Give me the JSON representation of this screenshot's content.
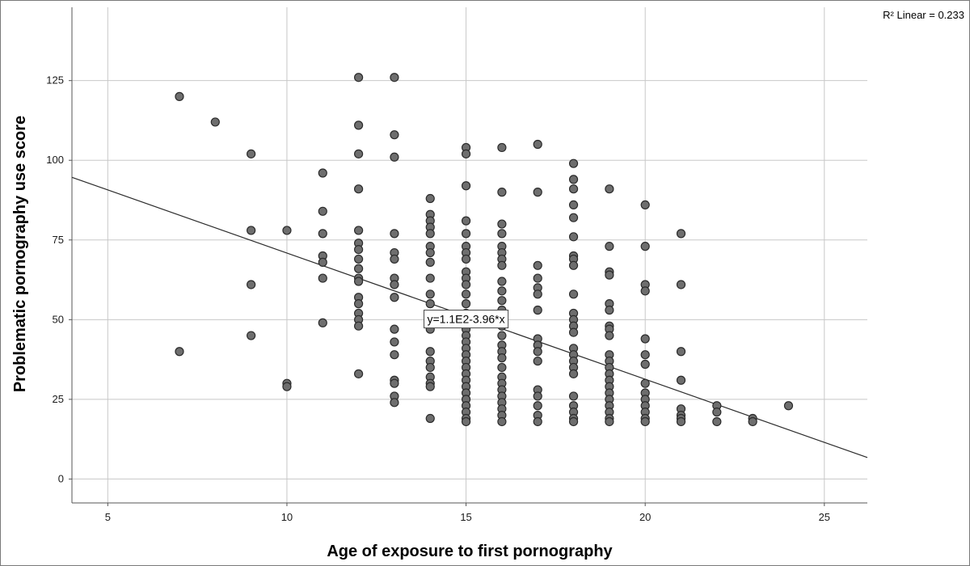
{
  "chart_data": {
    "type": "scatter",
    "title": "",
    "xlabel": "Age of exposure to first pornography",
    "ylabel": "Problematic pornography use score",
    "xlim": [
      4,
      26.2
    ],
    "ylim": [
      -7.5,
      148
    ],
    "x_ticks": [
      5,
      10,
      15,
      20,
      25
    ],
    "y_ticks": [
      0,
      25,
      50,
      75,
      100,
      125
    ],
    "grid": true,
    "marker_color": "#6e6e6e",
    "marker_edge_color": "#2b2b2b",
    "line_color": "#2b2b2b",
    "fit_line": {
      "intercept": 110.5,
      "slope": -3.96,
      "equation_label": "y=1.1E2-3.96*x",
      "equation_at": [
        15,
        50.2
      ],
      "r2_label": "R² Linear = 0.233"
    },
    "points": [
      [
        7,
        120
      ],
      [
        7,
        40
      ],
      [
        8,
        112
      ],
      [
        9,
        102
      ],
      [
        9,
        78
      ],
      [
        9,
        61
      ],
      [
        9,
        45
      ],
      [
        10,
        78
      ],
      [
        10,
        30
      ],
      [
        10,
        29
      ],
      [
        11,
        96
      ],
      [
        11,
        84
      ],
      [
        11,
        77
      ],
      [
        11,
        70
      ],
      [
        11,
        68
      ],
      [
        11,
        63
      ],
      [
        11,
        49
      ],
      [
        12,
        126
      ],
      [
        12,
        111
      ],
      [
        12,
        102
      ],
      [
        12,
        91
      ],
      [
        12,
        78
      ],
      [
        12,
        74
      ],
      [
        12,
        72
      ],
      [
        12,
        69
      ],
      [
        12,
        66
      ],
      [
        12,
        63
      ],
      [
        12,
        62
      ],
      [
        12,
        57
      ],
      [
        12,
        55
      ],
      [
        12,
        52
      ],
      [
        12,
        50
      ],
      [
        12,
        48
      ],
      [
        12,
        33
      ],
      [
        13,
        126
      ],
      [
        13,
        108
      ],
      [
        13,
        101
      ],
      [
        13,
        77
      ],
      [
        13,
        71
      ],
      [
        13,
        69
      ],
      [
        13,
        63
      ],
      [
        13,
        61
      ],
      [
        13,
        57
      ],
      [
        13,
        47
      ],
      [
        13,
        43
      ],
      [
        13,
        39
      ],
      [
        13,
        31
      ],
      [
        13,
        30
      ],
      [
        13,
        26
      ],
      [
        13,
        24
      ],
      [
        14,
        88
      ],
      [
        14,
        83
      ],
      [
        14,
        81
      ],
      [
        14,
        79
      ],
      [
        14,
        77
      ],
      [
        14,
        73
      ],
      [
        14,
        71
      ],
      [
        14,
        68
      ],
      [
        14,
        63
      ],
      [
        14,
        58
      ],
      [
        14,
        55
      ],
      [
        14,
        51
      ],
      [
        14,
        47
      ],
      [
        14,
        40
      ],
      [
        14,
        37
      ],
      [
        14,
        35
      ],
      [
        14,
        32
      ],
      [
        14,
        30
      ],
      [
        14,
        29
      ],
      [
        14,
        19
      ],
      [
        15,
        104
      ],
      [
        15,
        102
      ],
      [
        15,
        92
      ],
      [
        15,
        81
      ],
      [
        15,
        77
      ],
      [
        15,
        73
      ],
      [
        15,
        71
      ],
      [
        15,
        69
      ],
      [
        15,
        65
      ],
      [
        15,
        63
      ],
      [
        15,
        61
      ],
      [
        15,
        58
      ],
      [
        15,
        55
      ],
      [
        15,
        52
      ],
      [
        15,
        49
      ],
      [
        15,
        47
      ],
      [
        15,
        45
      ],
      [
        15,
        43
      ],
      [
        15,
        41
      ],
      [
        15,
        39
      ],
      [
        15,
        37
      ],
      [
        15,
        35
      ],
      [
        15,
        33
      ],
      [
        15,
        31
      ],
      [
        15,
        29
      ],
      [
        15,
        27
      ],
      [
        15,
        25
      ],
      [
        15,
        23
      ],
      [
        15,
        21
      ],
      [
        15,
        19
      ],
      [
        15,
        18
      ],
      [
        16,
        104
      ],
      [
        16,
        90
      ],
      [
        16,
        80
      ],
      [
        16,
        77
      ],
      [
        16,
        73
      ],
      [
        16,
        71
      ],
      [
        16,
        69
      ],
      [
        16,
        67
      ],
      [
        16,
        62
      ],
      [
        16,
        59
      ],
      [
        16,
        56
      ],
      [
        16,
        53
      ],
      [
        16,
        51
      ],
      [
        16,
        48
      ],
      [
        16,
        45
      ],
      [
        16,
        42
      ],
      [
        16,
        40
      ],
      [
        16,
        38
      ],
      [
        16,
        35
      ],
      [
        16,
        32
      ],
      [
        16,
        30
      ],
      [
        16,
        28
      ],
      [
        16,
        26
      ],
      [
        16,
        24
      ],
      [
        16,
        22
      ],
      [
        16,
        20
      ],
      [
        16,
        18
      ],
      [
        17,
        105
      ],
      [
        17,
        90
      ],
      [
        17,
        67
      ],
      [
        17,
        63
      ],
      [
        17,
        60
      ],
      [
        17,
        58
      ],
      [
        17,
        53
      ],
      [
        17,
        44
      ],
      [
        17,
        42
      ],
      [
        17,
        40
      ],
      [
        17,
        37
      ],
      [
        17,
        28
      ],
      [
        17,
        26
      ],
      [
        17,
        23
      ],
      [
        17,
        20
      ],
      [
        17,
        18
      ],
      [
        18,
        99
      ],
      [
        18,
        94
      ],
      [
        18,
        91
      ],
      [
        18,
        86
      ],
      [
        18,
        82
      ],
      [
        18,
        76
      ],
      [
        18,
        70
      ],
      [
        18,
        69
      ],
      [
        18,
        67
      ],
      [
        18,
        58
      ],
      [
        18,
        52
      ],
      [
        18,
        50
      ],
      [
        18,
        48
      ],
      [
        18,
        46
      ],
      [
        18,
        41
      ],
      [
        18,
        39
      ],
      [
        18,
        37
      ],
      [
        18,
        35
      ],
      [
        18,
        33
      ],
      [
        18,
        26
      ],
      [
        18,
        23
      ],
      [
        18,
        21
      ],
      [
        18,
        19
      ],
      [
        18,
        18
      ],
      [
        19,
        91
      ],
      [
        19,
        73
      ],
      [
        19,
        65
      ],
      [
        19,
        64
      ],
      [
        19,
        55
      ],
      [
        19,
        53
      ],
      [
        19,
        48
      ],
      [
        19,
        47
      ],
      [
        19,
        45
      ],
      [
        19,
        39
      ],
      [
        19,
        37
      ],
      [
        19,
        35
      ],
      [
        19,
        33
      ],
      [
        19,
        31
      ],
      [
        19,
        29
      ],
      [
        19,
        27
      ],
      [
        19,
        25
      ],
      [
        19,
        23
      ],
      [
        19,
        21
      ],
      [
        19,
        19
      ],
      [
        19,
        18
      ],
      [
        20,
        86
      ],
      [
        20,
        73
      ],
      [
        20,
        61
      ],
      [
        20,
        59
      ],
      [
        20,
        44
      ],
      [
        20,
        39
      ],
      [
        20,
        36
      ],
      [
        20,
        30
      ],
      [
        20,
        27
      ],
      [
        20,
        25
      ],
      [
        20,
        23
      ],
      [
        20,
        21
      ],
      [
        20,
        19
      ],
      [
        20,
        18
      ],
      [
        21,
        77
      ],
      [
        21,
        61
      ],
      [
        21,
        40
      ],
      [
        21,
        31
      ],
      [
        21,
        22
      ],
      [
        21,
        20
      ],
      [
        21,
        19
      ],
      [
        21,
        18
      ],
      [
        22,
        23
      ],
      [
        22,
        21
      ],
      [
        22,
        18
      ],
      [
        23,
        19
      ],
      [
        23,
        18
      ],
      [
        24,
        23
      ]
    ]
  }
}
